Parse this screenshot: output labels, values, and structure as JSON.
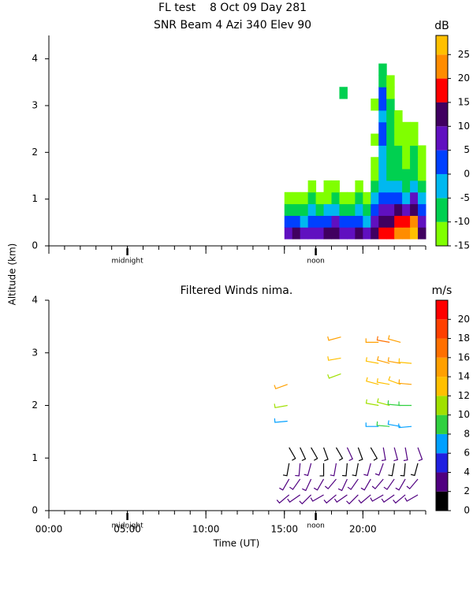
{
  "chart_data": [
    {
      "type": "heatmap",
      "title": "FL test    8 Oct 09 Day 281",
      "subtitle": "SNR Beam 4 Azi 340 Elev 90",
      "ylabel": "Altitude (km)",
      "xlim": [
        0,
        24
      ],
      "ylim": [
        0,
        4.5
      ],
      "xticks": [
        0,
        5,
        10,
        15,
        20
      ],
      "xticklabels": false,
      "xminorticks": [
        0,
        1,
        2,
        3,
        4,
        5,
        6,
        7,
        8,
        9,
        10,
        11,
        12,
        13,
        14,
        15,
        16,
        17,
        18,
        19,
        20,
        21,
        22,
        23,
        24
      ],
      "yticks": [
        0,
        1,
        2,
        3,
        4
      ],
      "annotations": [
        {
          "text": "midnight",
          "x": 5
        },
        {
          "text": "noon",
          "x": 17
        }
      ],
      "colorbar": {
        "label": "dB",
        "lim": [
          -15,
          29
        ],
        "ticks": [
          -15,
          -10,
          -5,
          0,
          5,
          10,
          15,
          20,
          25
        ],
        "colors": [
          "#80ff00",
          "#00d050",
          "#00b8f0",
          "#0040ff",
          "#6010c0",
          "#400060",
          "#ff0000",
          "#ff8c00",
          "#ffc000"
        ]
      },
      "x": [
        15,
        15.5,
        16,
        16.5,
        17,
        17.5,
        18,
        18.5,
        19,
        19.5,
        20,
        20.5,
        21,
        21.5,
        22,
        22.5,
        23,
        23.5
      ],
      "y": [
        0.15,
        0.4,
        0.65,
        0.9,
        1.15,
        1.4,
        1.65,
        1.9,
        2.15,
        2.4,
        2.65,
        2.9,
        3.15,
        3.4,
        3.65
      ],
      "z": [
        [
          8,
          10,
          6,
          9,
          7,
          10,
          12,
          9,
          8,
          10,
          7,
          12,
          18,
          15,
          22,
          20,
          25,
          12
        ],
        [
          0,
          2,
          -2,
          3,
          0,
          2,
          5,
          1,
          0,
          4,
          -2,
          8,
          12,
          14,
          18,
          15,
          20,
          8
        ],
        [
          -8,
          -6,
          -8,
          -5,
          -7,
          -5,
          -3,
          -6,
          -7,
          -4,
          -8,
          2,
          8,
          6,
          10,
          8,
          12,
          2
        ],
        [
          -13,
          -12,
          -12,
          -10,
          -12,
          -11,
          -9,
          -12,
          -13,
          -10,
          -12,
          -5,
          3,
          0,
          4,
          -2,
          5,
          -5
        ],
        [
          null,
          null,
          null,
          -14,
          null,
          -13,
          -12,
          null,
          null,
          -14,
          null,
          -10,
          -2,
          -5,
          -3,
          -8,
          -2,
          -10
        ],
        [
          null,
          null,
          null,
          null,
          null,
          null,
          null,
          null,
          null,
          null,
          null,
          -12,
          -4,
          -7,
          -6,
          -10,
          -6,
          -12
        ],
        [
          null,
          null,
          null,
          null,
          null,
          null,
          null,
          null,
          null,
          null,
          null,
          -13,
          -3,
          -8,
          -9,
          -12,
          -8,
          -13
        ],
        [
          null,
          null,
          null,
          null,
          null,
          null,
          null,
          null,
          null,
          null,
          null,
          null,
          -2,
          -9,
          -10,
          -13,
          -10,
          -14
        ],
        [
          null,
          null,
          null,
          null,
          null,
          null,
          null,
          null,
          null,
          null,
          null,
          -14,
          0,
          -8,
          -11,
          -13,
          -11,
          null
        ],
        [
          null,
          null,
          null,
          null,
          null,
          null,
          null,
          null,
          null,
          null,
          null,
          null,
          1,
          -9,
          -12,
          -14,
          -13,
          null
        ],
        [
          null,
          null,
          null,
          null,
          null,
          null,
          null,
          null,
          null,
          null,
          null,
          null,
          -2,
          -10,
          -13,
          null,
          null,
          null
        ],
        [
          null,
          null,
          null,
          null,
          null,
          null,
          null,
          null,
          null,
          null,
          null,
          -12,
          3,
          -9,
          null,
          null,
          null,
          null
        ],
        [
          null,
          null,
          null,
          null,
          null,
          null,
          null,
          -10,
          null,
          null,
          null,
          null,
          0,
          -11,
          null,
          null,
          null,
          null
        ],
        [
          null,
          null,
          null,
          null,
          null,
          null,
          null,
          null,
          null,
          null,
          null,
          null,
          -6,
          -12,
          null,
          null,
          null,
          null
        ],
        [
          null,
          null,
          null,
          null,
          null,
          null,
          null,
          null,
          null,
          null,
          null,
          null,
          -10,
          null,
          null,
          null,
          null,
          null
        ]
      ]
    },
    {
      "type": "barbs",
      "title": "Filtered Winds nima.",
      "xlabel": "Time (UT)",
      "xlim": [
        0,
        24
      ],
      "ylim": [
        0,
        4
      ],
      "xticks": [
        {
          "value": 0,
          "label": "00:00"
        },
        {
          "value": 5,
          "label": "05:00"
        },
        {
          "value": 10,
          "label": "10:00"
        },
        {
          "value": 15,
          "label": "15:00"
        },
        {
          "value": 20,
          "label": "20:00"
        }
      ],
      "xticklabels": true,
      "xminorticks": [
        0,
        1,
        2,
        3,
        4,
        5,
        6,
        7,
        8,
        9,
        10,
        11,
        12,
        13,
        14,
        15,
        16,
        17,
        18,
        19,
        20,
        21,
        22,
        23,
        24
      ],
      "yticks": [
        0,
        1,
        2,
        3,
        4
      ],
      "annotations": [
        {
          "text": "midnight",
          "x": 5
        },
        {
          "text": "noon",
          "x": 17
        }
      ],
      "colorbar": {
        "label": "m/s",
        "lim": [
          0,
          22
        ],
        "ticks": [
          0,
          2,
          4,
          6,
          8,
          10,
          12,
          14,
          16,
          18,
          20
        ],
        "colors": [
          "#000000",
          "#500080",
          "#2020e0",
          "#00a0ff",
          "#30d040",
          "#a0e000",
          "#ffc000",
          "#ffa000",
          "#ff7000",
          "#ff4000",
          "#ff0000"
        ]
      },
      "x": [
        15.3,
        15.3,
        15.3,
        15.3,
        16,
        16,
        16,
        16,
        16.7,
        16.7,
        16.7,
        16.7,
        17.5,
        17.5,
        17.5,
        17.5,
        18.3,
        18.3,
        18.3,
        18.3,
        19,
        19,
        19,
        19,
        19.7,
        19.7,
        19.7,
        19.7,
        20.5,
        20.5,
        20.5,
        20.5,
        21.3,
        21.3,
        21.3,
        21.3,
        22,
        22,
        22,
        22,
        22.7,
        22.7,
        22.7,
        22.7,
        23.5,
        23.5,
        23.5,
        23.5,
        21,
        21.7,
        22.4,
        23.1,
        21,
        21.7,
        22.4,
        23.1,
        21,
        21.7,
        22.4,
        23.1,
        21,
        21.7,
        22.4,
        23.1,
        21,
        21.7,
        22.4,
        18.6,
        18.6,
        18.6,
        15.2,
        15.2,
        15.2
      ],
      "y": [
        0.3,
        0.6,
        0.9,
        1.2,
        0.3,
        0.6,
        0.9,
        1.2,
        0.3,
        0.6,
        0.9,
        1.2,
        0.3,
        0.6,
        0.9,
        1.2,
        0.3,
        0.6,
        0.9,
        1.2,
        0.3,
        0.6,
        0.9,
        1.2,
        0.3,
        0.6,
        0.9,
        1.2,
        0.3,
        0.6,
        0.9,
        1.2,
        0.3,
        0.6,
        0.9,
        1.2,
        0.3,
        0.6,
        0.9,
        1.2,
        0.3,
        0.6,
        0.9,
        1.2,
        0.3,
        0.6,
        0.9,
        1.2,
        1.6,
        1.6,
        1.6,
        1.6,
        2.0,
        2.0,
        2.0,
        2.0,
        2.4,
        2.4,
        2.4,
        2.4,
        2.8,
        2.8,
        2.8,
        2.8,
        3.2,
        3.2,
        3.2,
        3.3,
        2.9,
        2.6,
        2.4,
        2.0,
        1.7
      ],
      "speed": [
        3,
        2,
        1,
        1,
        3,
        2,
        2,
        1,
        3,
        3,
        2,
        1,
        2,
        2,
        1,
        1,
        3,
        2,
        2,
        1,
        3,
        3,
        1,
        2,
        2,
        2,
        1,
        1,
        3,
        3,
        2,
        1,
        3,
        2,
        2,
        3,
        3,
        3,
        1,
        2,
        3,
        2,
        1,
        3,
        3,
        2,
        1,
        2,
        7,
        8,
        7,
        6,
        10,
        11,
        9,
        9,
        12,
        13,
        12,
        14,
        13,
        14,
        15,
        13,
        15,
        16,
        14,
        15,
        13,
        10,
        15,
        11,
        7
      ],
      "direction": [
        230,
        210,
        190,
        150,
        235,
        215,
        185,
        155,
        225,
        205,
        195,
        150,
        240,
        210,
        180,
        160,
        230,
        220,
        190,
        150,
        235,
        205,
        185,
        155,
        225,
        215,
        190,
        160,
        230,
        210,
        195,
        150,
        240,
        220,
        200,
        170,
        235,
        215,
        190,
        165,
        230,
        210,
        185,
        170,
        240,
        220,
        195,
        160,
        270,
        275,
        280,
        265,
        280,
        285,
        275,
        270,
        285,
        280,
        290,
        275,
        280,
        285,
        280,
        275,
        270,
        280,
        285,
        255,
        260,
        250,
        250,
        260,
        265
      ]
    }
  ]
}
